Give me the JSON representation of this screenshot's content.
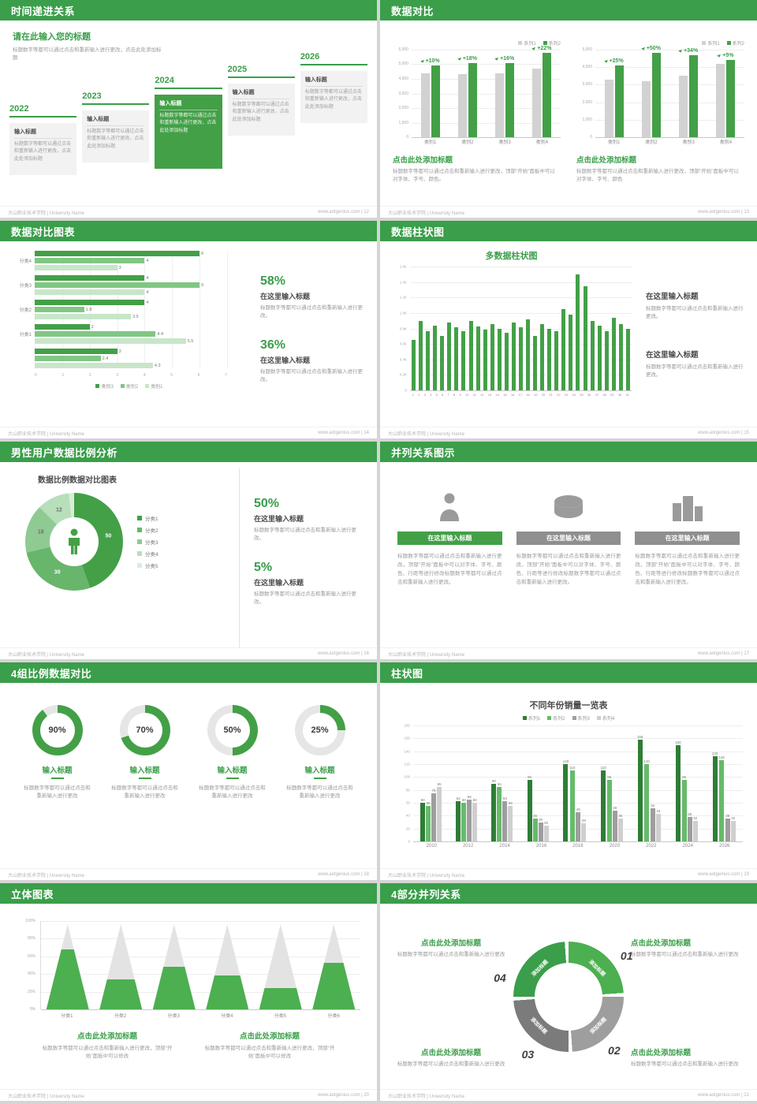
{
  "theme": {
    "header_green": "#3a9e4a",
    "green": "#43a047",
    "green_dark": "#2e7d36",
    "green_mid": "#66bb6a",
    "green_light": "#a5d6a7",
    "gray_bar": "#d2d2d2",
    "text_dark": "#4a4a4a",
    "text_gray": "#9a9a9a"
  },
  "footer": {
    "left": "大山职业技术学院 | University Name",
    "site": "www.aotgenius.com",
    "sep": " | "
  },
  "slides": {
    "s12": {
      "page_no": "12",
      "header": "时间递进关系",
      "intro_title": "请在此输入您的标题",
      "intro_text": "标题数字等都可以通过点击和重新输入进行更改，点击此处添加标题",
      "items": [
        {
          "year": "2022",
          "title": "输入标题",
          "text": "标题数字等都可以通过点击和重新输入进行更改，点击此处添加标题",
          "highlight": false
        },
        {
          "year": "2023",
          "title": "输入标题",
          "text": "标题数字等都可以通过点击和重新输入进行更改，点击此处添加标题",
          "highlight": false
        },
        {
          "year": "2024",
          "title": "输入标题",
          "text": "标题数字等都可以通过点击和重新输入进行更改，点击此处添加标题",
          "highlight": true
        },
        {
          "year": "2025",
          "title": "输入标题",
          "text": "标题数字等都可以通过点击和重新输入进行更改，点击此处添加标题",
          "highlight": false
        },
        {
          "year": "2026",
          "title": "输入标题",
          "text": "标题数字等都可以通过点击和重新输入进行更改，点击此处添加标题",
          "highlight": false
        }
      ]
    },
    "s13": {
      "page_no": "13",
      "header": "数据对比",
      "panels": [
        {
          "legend": [
            {
              "label": "系列1",
              "color": "#d2d2d2"
            },
            {
              "label": "系列2",
              "color": "#43a047"
            }
          ],
          "chart": {
            "yticks": [
              "6,000",
              "5,000",
              "4,000",
              "3,000",
              "2,000",
              "1,000",
              "0"
            ],
            "ymax": 6000,
            "categories": [
              "类别1",
              "类别2",
              "类别3",
              "类别4"
            ],
            "series": [
              {
                "name": "系列1",
                "color": "#d2d2d2",
                "values": [
                  4400,
                  4300,
                  4400,
                  4700
                ]
              },
              {
                "name": "系列2",
                "color": "#43a047",
                "values": [
                  4900,
                  5100,
                  5100,
                  5800
                ]
              }
            ],
            "pct_labels": [
              "+10%",
              "+18%",
              "+16%",
              "+22%"
            ]
          },
          "caption_title": "点击此处添加标题",
          "caption_text": "标题数字等都可以通过点击和重新输入进行更改，顶部“开始”面板中可以对字体、字号、颜色。"
        },
        {
          "legend": [
            {
              "label": "系列1",
              "color": "#d2d2d2"
            },
            {
              "label": "系列2",
              "color": "#43a047"
            }
          ],
          "chart": {
            "yticks": [
              "5,000",
              "4,000",
              "3,000",
              "2,000",
              "1,000",
              "0"
            ],
            "ymax": 5000,
            "categories": [
              "类别1",
              "类别2",
              "类别3",
              "类别4"
            ],
            "series": [
              {
                "name": "系列1",
                "color": "#d2d2d2",
                "values": [
                  3300,
                  3200,
                  3500,
                  4200
                ]
              },
              {
                "name": "系列2",
                "color": "#43a047",
                "values": [
                  4100,
                  4800,
                  4700,
                  4400
                ]
              }
            ],
            "pct_labels": [
              "+25%",
              "+50%",
              "+34%",
              "+5%"
            ]
          },
          "caption_title": "点击此处添加标题",
          "caption_text": "标题数字等都可以通过点击和重新输入进行更改，顶部“开始”面板中可以对字体、字号、颜色"
        }
      ]
    },
    "s14": {
      "page_no": "14",
      "header": "数据对比图表",
      "chart": {
        "xmax": 7,
        "xticks": [
          "0",
          "1",
          "2",
          "3",
          "4",
          "5",
          "6",
          "7"
        ],
        "colors": [
          "#43a047",
          "#81c784",
          "#c8e6c9"
        ],
        "groups": [
          {
            "label": "分类4",
            "values": [
              6,
              4,
              3
            ]
          },
          {
            "label": "分类3",
            "values": [
              4,
              6,
              4
            ]
          },
          {
            "label": "分类2",
            "values": [
              4,
              1.8,
              3.5
            ]
          },
          {
            "label": "分类1",
            "values": [
              2,
              4.4,
              5.5
            ]
          },
          {
            "label": "",
            "values": [
              3,
              2.4,
              4.3
            ]
          }
        ],
        "legend": [
          {
            "label": "类别3",
            "color": "#43a047"
          },
          {
            "label": "类别2",
            "color": "#81c784"
          },
          {
            "label": "类别1",
            "color": "#c8e6c9"
          }
        ]
      },
      "stats": [
        {
          "pct": "58%",
          "title": "在这里输入标题",
          "text": "标题数字等都可以通过点击和重新输入进行更改。"
        },
        {
          "pct": "36%",
          "title": "在这里输入标题",
          "text": "标题数字等都可以通过点击和重新输入进行更改。"
        }
      ]
    },
    "s15": {
      "page_no": "15",
      "header": "数据柱状图",
      "chart_title": "多数据柱状图",
      "chart": {
        "yticks": [
          "1.6K",
          "1.4K",
          "1.2K",
          "1.0K",
          "0.8K",
          "0.6K",
          "0.4K",
          "0.2K",
          "0"
        ],
        "ymax": 1600,
        "categories": [
          "1",
          "2",
          "3",
          "4",
          "5",
          "6",
          "7",
          "8",
          "9",
          "10",
          "11",
          "12",
          "13",
          "14",
          "15",
          "16",
          "17",
          "18",
          "19",
          "20",
          "21",
          "22",
          "23",
          "24",
          "25",
          "26",
          "27",
          "28",
          "29",
          "30",
          "31"
        ],
        "series": [
          {
            "name": "数据",
            "color": "#43a047",
            "values": [
              650,
              900,
              760,
              840,
              700,
              880,
              820,
              760,
              900,
              830,
              780,
              860,
              800,
              740,
              880,
              820,
              920,
              700,
              860,
              800,
              760,
              1050,
              980,
              1500,
              1350,
              900,
              840,
              760,
              940,
              860,
              800
            ]
          }
        ]
      },
      "notes": [
        {
          "title": "在这里输入标题",
          "text": "标题数字等都可以通过点击和重新输入进行更改。"
        },
        {
          "title": "在这里输入标题",
          "text": "标题数字等都可以通过点击和重新输入进行更改。"
        }
      ]
    },
    "s16": {
      "page_no": "16",
      "header": "男性用户数据比例分析",
      "chart_title": "数据比例数据对比图表",
      "donut": {
        "values": [
          50,
          30,
          18,
          12,
          2
        ],
        "labels": [
          "50",
          "30",
          "18",
          "12",
          ""
        ],
        "colors": [
          "#43a047",
          "#68b56c",
          "#8fca93",
          "#b7dfba",
          "#d8eeda"
        ],
        "legend": [
          "分类1",
          "分类2",
          "分类3",
          "分类4",
          "分类5"
        ]
      },
      "stats": [
        {
          "pct": "50%",
          "title": "在这里输入标题",
          "text": "标题数字等都可以通过点击和重新输入进行更改。"
        },
        {
          "pct": "5%",
          "title": "在这里输入标题",
          "text": "标题数字等都可以通过点击和重新输入进行更改。"
        }
      ]
    },
    "s17": {
      "page_no": "17",
      "header": "并列关系图示",
      "columns": [
        {
          "icon": "person",
          "header": "在这里输入标题",
          "text": "标题数字等都可以通过点击和重新输入进行更改，顶部“开始”面板中可以对字体、字号、颜色、行距等进行修改标题数字等都可以通过点击和重新输入进行更改。"
        },
        {
          "icon": "pie",
          "header": "在这里输入标题",
          "text": "标题数字等都可以通过点击和重新输入进行更改，顶部“开始”面板中可以对字体、字号、颜色、行距等进行修改标题数字等都可以通过点击和重新输入进行更改。"
        },
        {
          "icon": "building",
          "header": "在这里输入标题",
          "text": "标题数字等都可以通过点击和重新输入进行更改，顶部“开始”面板中可以对字体、字号、颜色、行距等进行修改标题数字等都可以通过点击和重新输入进行更改。"
        }
      ]
    },
    "s18": {
      "page_no": "18",
      "header": "4组比例数据对比",
      "rings": [
        {
          "pct": 90,
          "pct_label": "90%",
          "title": "输入标题",
          "text": "标题数字等都可以通过点击和重新输入进行更改"
        },
        {
          "pct": 70,
          "pct_label": "70%",
          "title": "输入标题",
          "text": "标题数字等都可以通过点击和重新输入进行更改"
        },
        {
          "pct": 50,
          "pct_label": "50%",
          "title": "输入标题",
          "text": "标题数字等都可以通过点击和重新输入进行更改"
        },
        {
          "pct": 25,
          "pct_label": "25%",
          "title": "输入标题",
          "text": "标题数字等都可以通过点击和重新输入进行更改"
        }
      ]
    },
    "s19": {
      "page_no": "19",
      "header": "柱状图",
      "chart_title": "不同年份销量一览表",
      "legend": [
        {
          "label": "系列1",
          "color": "#2e7d36"
        },
        {
          "label": "系列2",
          "color": "#66bb6a"
        },
        {
          "label": "系列3",
          "color": "#9e9e9e"
        },
        {
          "label": "系列4",
          "color": "#cfcfcf"
        }
      ],
      "chart": {
        "yticks": [
          "180",
          "160",
          "140",
          "120",
          "100",
          "80",
          "60",
          "40",
          "20",
          "0"
        ],
        "ymax": 180,
        "value_labels": true,
        "categories": [
          "2010",
          "2012",
          "2014",
          "2016",
          "2018",
          "2020",
          "2022",
          "2024",
          "2026"
        ],
        "series": [
          {
            "name": "系列1",
            "color": "#2e7d36",
            "values": [
              60,
              62,
              90,
              95,
              120,
              110,
              158,
              150,
              132
            ]
          },
          {
            "name": "系列2",
            "color": "#66bb6a",
            "values": [
              55,
              60,
              84,
              35,
              110,
              95,
              120,
              95,
              126
            ]
          },
          {
            "name": "系列3",
            "color": "#9e9e9e",
            "values": [
              75,
              65,
              63,
              30,
              45,
              48,
              52,
              38,
              36
            ]
          },
          {
            "name": "系列4",
            "color": "#cfcfcf",
            "values": [
              85,
              60,
              55,
              25,
              28,
              35,
              43,
              32,
              32
            ]
          }
        ]
      }
    },
    "s20": {
      "page_no": "20",
      "header": "立体图表",
      "chart": {
        "yticks": [
          "100%",
          "80%",
          "60%",
          "40%",
          "20%",
          "0%"
        ],
        "cones": [
          {
            "label": "分类1",
            "pct": 70
          },
          {
            "label": "分类2",
            "pct": 35
          },
          {
            "label": "分类3",
            "pct": 50
          },
          {
            "label": "分类4",
            "pct": 40
          },
          {
            "label": "分类5",
            "pct": 25
          },
          {
            "label": "分类6",
            "pct": 55
          }
        ]
      },
      "notes": [
        {
          "title": "点击此处添加标题",
          "text": "标题数字等都可以通过点击和重新输入进行更改，顶部“开始”面板中可以修改"
        },
        {
          "title": "点击此处添加标题",
          "text": "标题数字等都可以通过点击和重新输入进行更改，顶部“开始”面板中可以修改"
        }
      ]
    },
    "s21": {
      "page_no": "21",
      "header": "4部分并列关系",
      "diagram": {
        "segments": [
          {
            "num": "01",
            "label": "添加标题",
            "color": "#4caf50"
          },
          {
            "num": "02",
            "label": "添加标题",
            "color": "#9e9e9e"
          },
          {
            "num": "03",
            "label": "添加标题",
            "color": "#7b7b7b"
          },
          {
            "num": "04",
            "label": "添加标题",
            "color": "#3a9e4a"
          }
        ]
      },
      "notes": [
        {
          "title": "点击此处添加标题",
          "text": "标题数字等都可以通过点击和重新输入进行更改"
        },
        {
          "title": "点击此处添加标题",
          "text": "标题数字等都可以通过点击和重新输入进行更改"
        },
        {
          "title": "点击此处添加标题",
          "text": "标题数字等都可以通过点击和重新输入进行更改"
        },
        {
          "title": "点击此处添加标题",
          "text": "标题数字等都可以通过点击和重新输入进行更改"
        }
      ]
    }
  }
}
